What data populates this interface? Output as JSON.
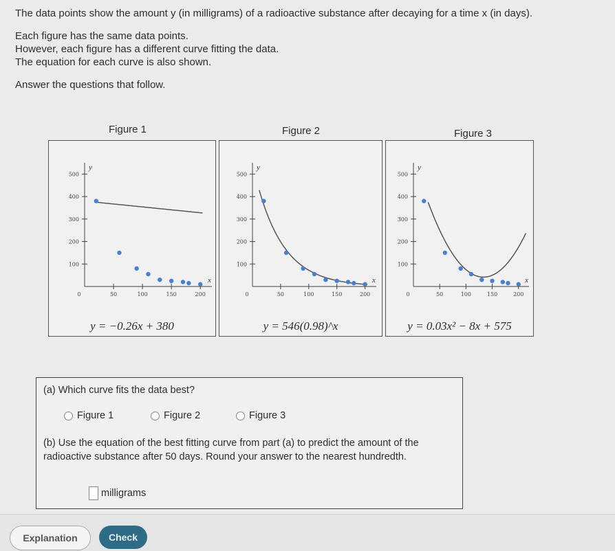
{
  "intro": {
    "line1": "The data points show the amount y (in milligrams) of a radioactive substance after decaying for a time x (in days).",
    "line2": "Each figure has the same data points.",
    "line3": "However, each figure has a different curve fitting the data.",
    "line4": "The equation for each curve is also shown.",
    "line5": "Answer the questions that follow."
  },
  "figures": [
    {
      "title": "Figure 1",
      "equation": "y = −0.26x + 380"
    },
    {
      "title": "Figure 2",
      "equation": "y = 546(0.98)^x"
    },
    {
      "title": "Figure 3",
      "equation": "y = 0.03x² − 8x + 575"
    }
  ],
  "chart_data": [
    {
      "type": "scatter",
      "title": "Figure 1",
      "xlabel": "x",
      "ylabel": "y",
      "xlim": [
        0,
        220
      ],
      "ylim": [
        0,
        550
      ],
      "x_ticks": [
        "0",
        "50",
        "100",
        "150",
        "200"
      ],
      "y_ticks": [
        "100",
        "200",
        "300",
        "400",
        "500"
      ],
      "points": [
        [
          20,
          380
        ],
        [
          60,
          150
        ],
        [
          90,
          80
        ],
        [
          110,
          55
        ],
        [
          130,
          30
        ],
        [
          150,
          25
        ],
        [
          170,
          20
        ],
        [
          180,
          15
        ],
        [
          200,
          10
        ]
      ],
      "curve": {
        "kind": "linear",
        "equation": "y = -0.26x + 380"
      }
    },
    {
      "type": "scatter",
      "title": "Figure 2",
      "xlabel": "x",
      "ylabel": "y",
      "xlim": [
        0,
        220
      ],
      "ylim": [
        0,
        550
      ],
      "x_ticks": [
        "0",
        "50",
        "100",
        "150",
        "200"
      ],
      "y_ticks": [
        "100",
        "200",
        "300",
        "400",
        "500"
      ],
      "points": [
        [
          20,
          380
        ],
        [
          60,
          150
        ],
        [
          90,
          80
        ],
        [
          110,
          55
        ],
        [
          130,
          30
        ],
        [
          150,
          25
        ],
        [
          170,
          20
        ],
        [
          180,
          15
        ],
        [
          200,
          10
        ]
      ],
      "curve": {
        "kind": "exponential",
        "equation": "y = 546(0.98)^x"
      }
    },
    {
      "type": "scatter",
      "title": "Figure 3",
      "xlabel": "x",
      "ylabel": "y",
      "xlim": [
        0,
        220
      ],
      "ylim": [
        0,
        550
      ],
      "x_ticks": [
        "0",
        "50",
        "100",
        "150",
        "200"
      ],
      "y_ticks": [
        "100",
        "200",
        "300",
        "400",
        "500"
      ],
      "points": [
        [
          20,
          380
        ],
        [
          60,
          150
        ],
        [
          90,
          80
        ],
        [
          110,
          55
        ],
        [
          130,
          30
        ],
        [
          150,
          25
        ],
        [
          170,
          20
        ],
        [
          180,
          15
        ],
        [
          200,
          10
        ]
      ],
      "curve": {
        "kind": "quadratic",
        "equation": "y = 0.03x^2 - 8x + 575"
      }
    }
  ],
  "question_a": {
    "label": "(a) Which curve fits the data best?",
    "options": [
      "Figure 1",
      "Figure 2",
      "Figure 3"
    ]
  },
  "question_b": {
    "label": "(b) Use the equation of the best fitting curve from part (a) to predict the amount of the radioactive substance after 50 days. Round your answer to the nearest hundredth.",
    "unit": "milligrams"
  },
  "buttons": {
    "explanation": "Explanation",
    "check": "Check"
  },
  "colors": {
    "point": "#4a7fcf",
    "curve": "#555555",
    "check_button": "#2d6b87"
  }
}
